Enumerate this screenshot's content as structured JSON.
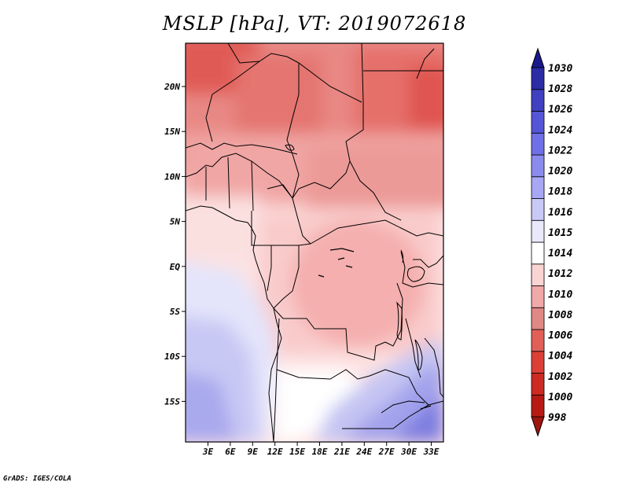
{
  "title": "MSLP [hPa], VT: 2019072618",
  "credit": "GrADS: IGES/COLA",
  "map": {
    "lat_labels": [
      "20N",
      "15N",
      "10N",
      "5N",
      "EQ",
      "5S",
      "10S",
      "15S"
    ],
    "lon_labels": [
      "3E",
      "6E",
      "9E",
      "12E",
      "15E",
      "18E",
      "21E",
      "24E",
      "27E",
      "30E",
      "33E"
    ]
  },
  "colorbar": {
    "levels": [
      "998",
      "1000",
      "1002",
      "1004",
      "1006",
      "1008",
      "1010",
      "1012",
      "1014",
      "1015",
      "1016",
      "1018",
      "1020",
      "1022",
      "1024",
      "1026",
      "1028",
      "1030"
    ],
    "colors": [
      "#a0140f",
      "#b71a15",
      "#cc2a22",
      "#db3f36",
      "#e06058",
      "#e08884",
      "#f0a8a8",
      "#fad3d3",
      "#ffffff",
      "#e9e9fb",
      "#c9c9f7",
      "#a7a7f3",
      "#8b8bee",
      "#7070e6",
      "#5555d8",
      "#4040c0",
      "#2c2ca6",
      "#1a1a8c"
    ]
  }
}
